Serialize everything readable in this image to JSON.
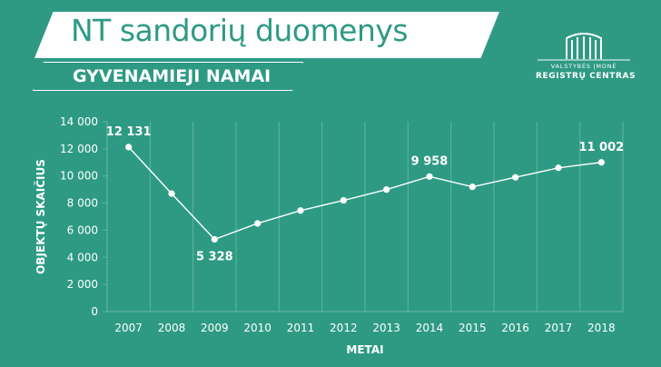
{
  "header": {
    "title": "NT sandorių duomenys",
    "subtitle": "GYVENAMIEJI NAMAI"
  },
  "logo": {
    "line1": "VALSTYBĖS ĮMONĖ",
    "line2": "REGISTRŲ CENTRAS"
  },
  "colors": {
    "background": "#2e9a84",
    "foreground": "#ffffff",
    "grid": "#5fb5a2"
  },
  "chart_data": {
    "type": "line",
    "x": [
      "2007",
      "2008",
      "2009",
      "2010",
      "2011",
      "2012",
      "2013",
      "2014",
      "2015",
      "2016",
      "2017",
      "2018"
    ],
    "series": [
      {
        "values": [
          12131,
          8700,
          5328,
          6500,
          7450,
          8200,
          9000,
          9958,
          9200,
          9900,
          10600,
          11002
        ]
      }
    ],
    "labeled_points": [
      {
        "x": "2007",
        "label": "12 131"
      },
      {
        "x": "2009",
        "label": "5 328"
      },
      {
        "x": "2014",
        "label": "9 958"
      },
      {
        "x": "2018",
        "label": "11 002"
      }
    ],
    "xlabel": "METAI",
    "ylabel": "OBJEKTŲ SKAIČIUS",
    "ylim": [
      0,
      14000
    ],
    "yticks": [
      0,
      2000,
      4000,
      6000,
      8000,
      10000,
      12000,
      14000
    ],
    "ytick_labels": [
      "0",
      "2 000",
      "4 000",
      "6 000",
      "8 000",
      "10 000",
      "12 000",
      "14 000"
    ],
    "grid": "vertical"
  }
}
